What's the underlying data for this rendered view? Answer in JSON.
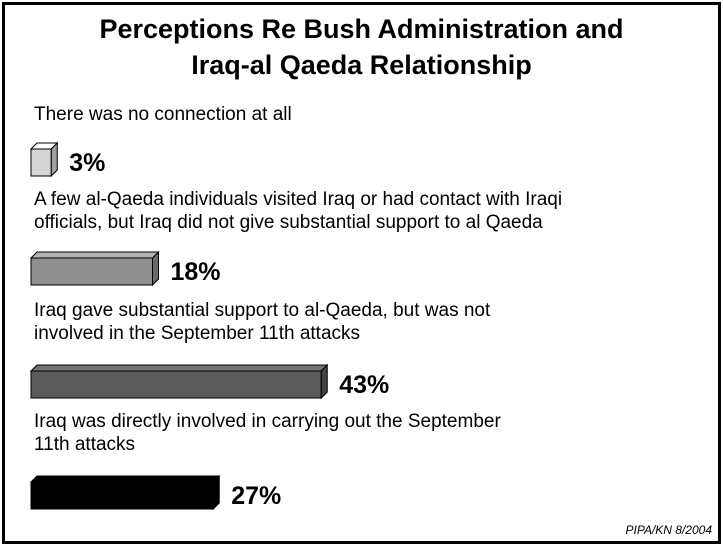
{
  "chart_data": {
    "type": "bar",
    "title": "Perceptions Re Bush Administration and Iraq-al Qaeda Relationship",
    "title_lines": [
      "Perceptions Re Bush Administration and",
      "Iraq-al Qaeda Relationship"
    ],
    "categories": [
      "There was no connection at all",
      "A few al-Qaeda individuals visited Iraq or had contact with Iraqi officials, but Iraq did not give substantial support to al Qaeda",
      "Iraq gave substantial support to al-Qaeda, but was not involved in the September 11th attacks",
      "Iraq was directly involved in carrying out the September 11th attacks"
    ],
    "category_lines": [
      [
        "There was no connection at all"
      ],
      [
        "A few al-Qaeda individuals visited Iraq or had contact with Iraqi",
        "officials, but Iraq did not give substantial support to al Qaeda"
      ],
      [
        "Iraq gave substantial support to al-Qaeda, but was not",
        "involved in the September 11th attacks"
      ],
      [
        "Iraq was directly involved in carrying out the September",
        "11th attacks"
      ]
    ],
    "values": [
      3,
      18,
      43,
      27
    ],
    "value_labels": [
      "3%",
      "18%",
      "43%",
      "27%"
    ],
    "bar_colors": [
      "#d4d4d4",
      "#8f8f8f",
      "#5a5a5a",
      "#000000"
    ],
    "bar_style": "3d"
  },
  "source": "PIPA/KN 8/2004"
}
